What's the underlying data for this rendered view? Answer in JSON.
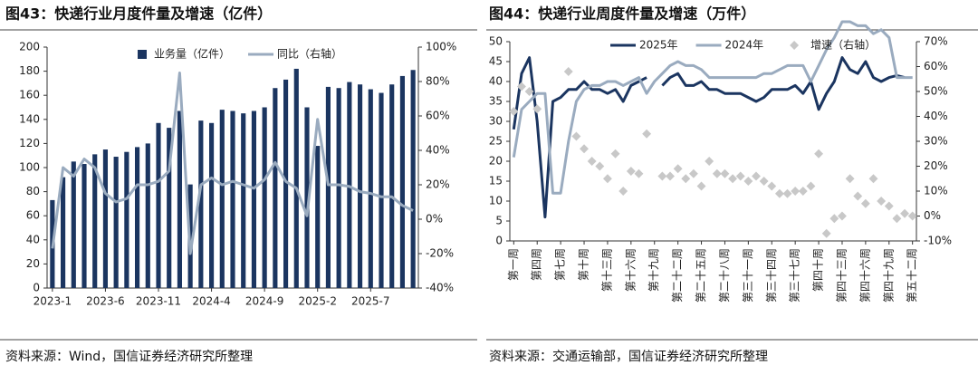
{
  "chart_data": [
    {
      "type": "bar",
      "title": "图43：快递行业月度件量及增速（亿件）",
      "source": "资料来源：Wind，国信证券经济研究所整理",
      "categories": [
        "2023-1",
        null,
        null,
        null,
        null,
        "2023-6",
        null,
        null,
        null,
        null,
        "2023-11",
        null,
        null,
        null,
        null,
        "2024-4",
        null,
        null,
        null,
        null,
        "2024-9",
        null,
        null,
        null,
        null,
        "2025-2",
        null,
        null,
        null,
        null,
        "2025-7",
        null,
        null,
        null,
        null
      ],
      "series": [
        {
          "name": "业务量（亿件）",
          "type": "bar",
          "color": "#1b3560",
          "values": [
            73,
            92,
            105,
            103,
            111,
            115,
            109,
            113,
            117,
            120,
            137,
            133,
            147,
            86,
            139,
            137,
            148,
            147,
            145,
            147,
            150,
            166,
            173,
            182,
            150,
            118,
            167,
            166,
            171,
            169,
            165,
            162,
            169,
            176,
            181
          ]
        },
        {
          "name": "同比（右轴）",
          "type": "line",
          "axis": "y2",
          "color": "#9aabbf",
          "values": [
            -17,
            30,
            25,
            35,
            30,
            15,
            10,
            12,
            20,
            20,
            22,
            28,
            85,
            -20,
            20,
            24,
            20,
            22,
            20,
            18,
            23,
            33,
            22,
            18,
            2,
            58,
            20,
            20,
            19,
            16,
            15,
            13,
            13,
            8,
            5
          ]
        }
      ],
      "ylim": [
        0,
        200
      ],
      "yticks": [
        0,
        20,
        40,
        60,
        80,
        100,
        120,
        140,
        160,
        180,
        200
      ],
      "y2lim": [
        -40,
        100
      ],
      "y2ticks": [
        {
          "value": -40,
          "label": "-40%"
        },
        {
          "value": -20,
          "label": "-20%"
        },
        {
          "value": 0,
          "label": "0%"
        },
        {
          "value": 20,
          "label": "20%"
        },
        {
          "value": 40,
          "label": "40%"
        },
        {
          "value": 60,
          "label": "60%"
        },
        {
          "value": 80,
          "label": "80%"
        },
        {
          "value": 100,
          "label": "100%"
        }
      ],
      "legend": "top"
    },
    {
      "type": "line",
      "title": "图44：快递行业周度件量及增速（万件）",
      "source": "资料来源：交通运输部，国信证券经济研究所整理",
      "categories": [
        "第一周",
        null,
        null,
        "第四周",
        null,
        null,
        "第七周",
        null,
        null,
        "第十周",
        null,
        null,
        "第十三周",
        null,
        null,
        "第十六周",
        null,
        null,
        "第十九周",
        null,
        null,
        "第二十二周",
        null,
        null,
        "第二十五周",
        null,
        null,
        "第二十八周",
        null,
        null,
        "第三十一周",
        null,
        null,
        "第三十四周",
        null,
        null,
        "第三十七周",
        null,
        null,
        "第四十周",
        null,
        null,
        "第四十三周",
        null,
        null,
        "第四十六周",
        null,
        null,
        "第四十九周",
        null,
        null,
        "第五十二周"
      ],
      "series": [
        {
          "name": "2025年",
          "type": "line",
          "color": "#1b3560",
          "values": [
            28,
            42,
            46,
            30,
            6,
            35,
            36,
            38,
            38,
            40,
            38,
            38,
            37,
            38,
            35,
            39,
            40,
            41,
            null,
            39,
            41,
            42,
            39,
            39,
            40,
            38,
            38,
            37,
            37,
            37,
            36,
            35,
            36,
            38,
            38,
            38,
            39,
            37,
            40,
            33,
            37,
            40,
            46,
            43,
            42,
            45,
            41,
            40,
            41,
            41.5,
            41,
            null
          ]
        },
        {
          "name": "2024年",
          "type": "line",
          "color": "#9aabbf",
          "values": [
            21,
            33,
            35,
            37,
            37,
            12,
            12,
            25,
            35,
            38,
            39,
            39,
            40,
            40,
            39,
            40,
            41,
            37,
            40,
            42,
            44,
            45,
            44,
            44,
            43,
            41,
            41,
            41,
            41,
            41,
            41,
            41,
            42,
            42,
            43,
            44,
            44,
            44,
            40,
            44,
            48,
            51,
            55,
            55,
            54,
            54,
            52,
            53,
            51,
            41,
            41,
            41
          ]
        },
        {
          "name": "增速（右轴）",
          "type": "scatter",
          "axis": "y2",
          "color": "#c8c8c8",
          "values": [
            42,
            52,
            50,
            43,
            null,
            null,
            null,
            58,
            32,
            27,
            22,
            20,
            15,
            25,
            10,
            18,
            17,
            33,
            null,
            16,
            16,
            19,
            15,
            17,
            12,
            22,
            17,
            17,
            15,
            16,
            14,
            16,
            14,
            12,
            9,
            9,
            10,
            10,
            12,
            25,
            -7,
            -1,
            0,
            15,
            8,
            5,
            15,
            6,
            4,
            -1,
            1,
            0
          ]
        }
      ],
      "ylim": [
        0,
        50
      ],
      "yticks": [
        0,
        5,
        10,
        15,
        20,
        25,
        30,
        35,
        40,
        45,
        50
      ],
      "y2lim": [
        -10,
        70
      ],
      "y2ticks": [
        {
          "value": -10,
          "label": "-10%"
        },
        {
          "value": 0,
          "label": "0%"
        },
        {
          "value": 10,
          "label": "10%"
        },
        {
          "value": 20,
          "label": "20%"
        },
        {
          "value": 30,
          "label": "30%"
        },
        {
          "value": 40,
          "label": "40%"
        },
        {
          "value": 50,
          "label": "50%"
        },
        {
          "value": 60,
          "label": "60%"
        },
        {
          "value": 70,
          "label": "70%"
        }
      ],
      "legend": "top"
    }
  ]
}
